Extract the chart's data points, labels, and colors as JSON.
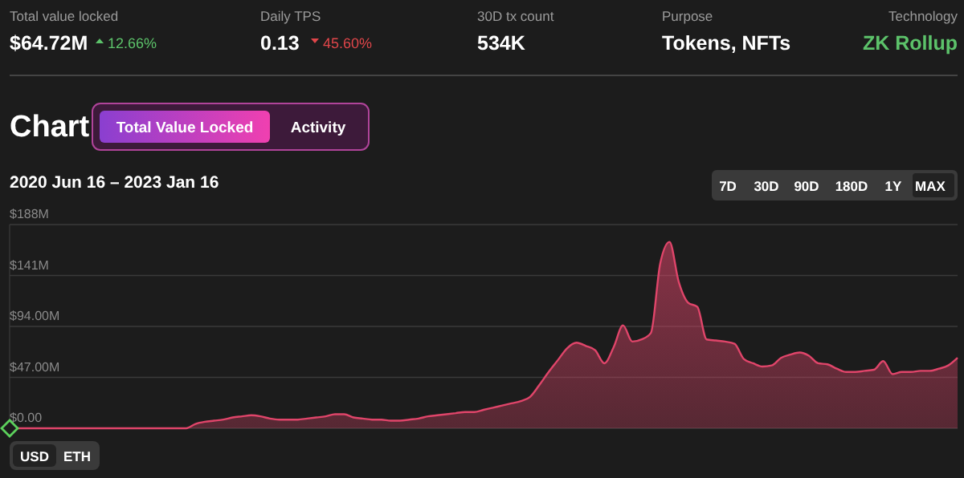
{
  "chart_data": [
    {
      "type": "other",
      "annotations": [
        "Total value locked",
        "$64.72M",
        "12.66%",
        "Daily TPS",
        "0.13",
        "45.60%",
        "30D tx count",
        "534K",
        "Purpose",
        "Tokens, NFTs",
        "Technology",
        "ZK Rollup"
      ]
    },
    {
      "type": "area",
      "title": "Chart",
      "subtitle": "2020 Jun 16 – 2023 Jan 16",
      "annotations": [
        "Total Value Locked",
        "Activity",
        "7D",
        "30D",
        "90D",
        "180D",
        "1Y",
        "MAX",
        "USD",
        "ETH"
      ],
      "categories": [
        null,
        null,
        null,
        null,
        null,
        null,
        null,
        null,
        null,
        null,
        null,
        null,
        null,
        null,
        null,
        null,
        null,
        null,
        null,
        null,
        null,
        null,
        null,
        null,
        null,
        null,
        null,
        null,
        null,
        null,
        null,
        null,
        null,
        null,
        null,
        null,
        null,
        null,
        null,
        null,
        null,
        null,
        null,
        null,
        null,
        null,
        null,
        null,
        null,
        null,
        null,
        null,
        null,
        null,
        null,
        null,
        null,
        null,
        null,
        null,
        null,
        null,
        null,
        null,
        null,
        null,
        null,
        null,
        null,
        null,
        null,
        null,
        null,
        null,
        null,
        null,
        null,
        null,
        null,
        null,
        null,
        null,
        null,
        null,
        null,
        null,
        null,
        null,
        null,
        null,
        null,
        null,
        null,
        null,
        null,
        null,
        null,
        null,
        null,
        null,
        null,
        null,
        null
      ],
      "series": [
        {
          "color": "#e0456a",
          "values": [
            0,
            0,
            0,
            0,
            0,
            0,
            0,
            0,
            0,
            0,
            0,
            0,
            0,
            0,
            0,
            0,
            0,
            0,
            0,
            0,
            4,
            6,
            7,
            8,
            10,
            11,
            12,
            11,
            9,
            8,
            8,
            8,
            9,
            10,
            11,
            13,
            13,
            10,
            9,
            8,
            8,
            7,
            7,
            8,
            9,
            11,
            12,
            13,
            14,
            15,
            15,
            17,
            19,
            21,
            23,
            25,
            29,
            40,
            52,
            63,
            74,
            79,
            76,
            72,
            60,
            75,
            95,
            80,
            82,
            88,
            152,
            172,
            135,
            116,
            112,
            82,
            81,
            80,
            78,
            64,
            60,
            57,
            58,
            65,
            68,
            70,
            67,
            60,
            59,
            55,
            52,
            52,
            53,
            54,
            62,
            50,
            52,
            52,
            53,
            53,
            55,
            58,
            65
          ]
        }
      ],
      "ylim": [
        0,
        188
      ],
      "yticks": [
        {
          "value": 0,
          "label": "$0.00"
        },
        {
          "value": 47,
          "label": "$47.00M"
        },
        {
          "value": 94,
          "label": "$94.00M"
        },
        {
          "value": 141,
          "label": "$141M"
        },
        {
          "value": 188,
          "label": "$188M"
        }
      ],
      "grid": "y",
      "tick_labels": "y"
    }
  ]
}
